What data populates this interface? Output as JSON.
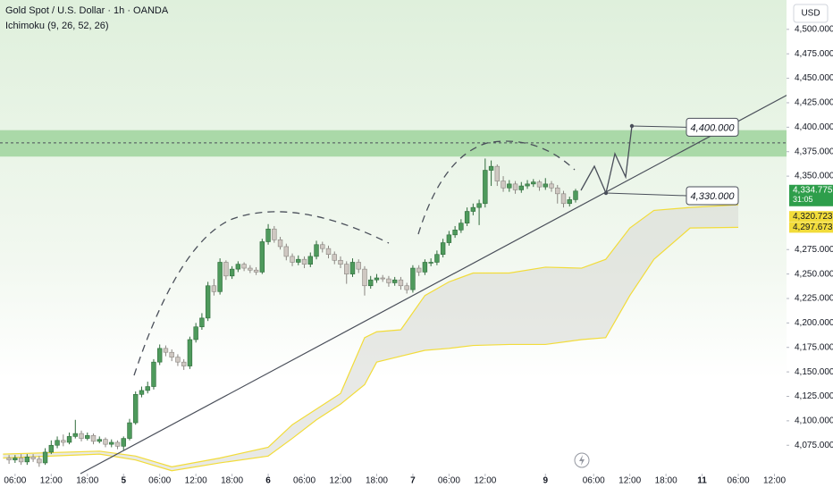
{
  "chart_data": {
    "type": "candlestick",
    "title": "Gold Spot / U.S. Dollar · 1h · OANDA",
    "indicator": "Ichimoku (9, 26, 52, 26)",
    "currency": "USD",
    "xlim": [
      3.5,
      134
    ],
    "ylim": [
      4046,
      4530
    ],
    "xticks": [
      {
        "value": 6,
        "label": "06:00"
      },
      {
        "value": 12,
        "label": "12:00"
      },
      {
        "value": 18,
        "label": "18:00"
      },
      {
        "value": 24,
        "label": "5"
      },
      {
        "value": 30,
        "label": "06:00"
      },
      {
        "value": 36,
        "label": "12:00"
      },
      {
        "value": 42,
        "label": "18:00"
      },
      {
        "value": 48,
        "label": "6"
      },
      {
        "value": 54,
        "label": "06:00"
      },
      {
        "value": 60,
        "label": "12:00"
      },
      {
        "value": 66,
        "label": "18:00"
      },
      {
        "value": 72,
        "label": "7"
      },
      {
        "value": 78,
        "label": "06:00"
      },
      {
        "value": 84,
        "label": "12:00"
      },
      {
        "value": 94,
        "label": "9"
      },
      {
        "value": 102,
        "label": "06:00"
      },
      {
        "value": 108,
        "label": "12:00"
      },
      {
        "value": 114,
        "label": "18:00"
      },
      {
        "value": 120,
        "label": "11"
      },
      {
        "value": 126,
        "label": "06:00"
      },
      {
        "value": 132,
        "label": "12:00"
      }
    ],
    "yticks": [
      {
        "value": 4075,
        "label": "4,075.000"
      },
      {
        "value": 4100,
        "label": "4,100.000"
      },
      {
        "value": 4125,
        "label": "4,125.000"
      },
      {
        "value": 4150,
        "label": "4,150.000"
      },
      {
        "value": 4175,
        "label": "4,175.000"
      },
      {
        "value": 4200,
        "label": "4,200.000"
      },
      {
        "value": 4225,
        "label": "4,225.000"
      },
      {
        "value": 4250,
        "label": "4,250.000"
      },
      {
        "value": 4275,
        "label": "4,275.000"
      },
      {
        "value": 4350,
        "label": "4,350.000"
      },
      {
        "value": 4375,
        "label": "4,375.000"
      },
      {
        "value": 4400,
        "label": "4,400.000"
      },
      {
        "value": 4425,
        "label": "4,425.000"
      },
      {
        "value": 4450,
        "label": "4,450.000"
      },
      {
        "value": 4475,
        "label": "4,475.000"
      },
      {
        "value": 4500,
        "label": "4,500.000"
      }
    ],
    "x": [
      5,
      6,
      7,
      8,
      9,
      10,
      11,
      12,
      13,
      14,
      15,
      16,
      17,
      18,
      19,
      20,
      21,
      22,
      23,
      24,
      25,
      26,
      27,
      28,
      29,
      30,
      31,
      32,
      33,
      34,
      35,
      36,
      37,
      38,
      39,
      40,
      41,
      42,
      43,
      44,
      45,
      46,
      47,
      48,
      49,
      50,
      51,
      52,
      53,
      54,
      55,
      56,
      57,
      58,
      59,
      60,
      61,
      62,
      63,
      64,
      65,
      66,
      67,
      68,
      69,
      70,
      71,
      72,
      73,
      74,
      75,
      76,
      77,
      78,
      79,
      80,
      81,
      82,
      83,
      84,
      85,
      86,
      87,
      88,
      89,
      90,
      91,
      92,
      93,
      94,
      95,
      96,
      97,
      98,
      99
    ],
    "open": [
      4062,
      4060,
      4062,
      4058,
      4063,
      4061,
      4057,
      4068,
      4075,
      4080,
      4078,
      4084,
      4087,
      4082,
      4085,
      4079,
      4081,
      4076,
      4078,
      4074,
      4082,
      4098,
      4127,
      4131,
      4135,
      4160,
      4174,
      4170,
      4165,
      4160,
      4156,
      4183,
      4196,
      4205,
      4238,
      4232,
      4262,
      4248,
      4255,
      4260,
      4256,
      4254,
      4252,
      4283,
      4296,
      4285,
      4278,
      4268,
      4262,
      4265,
      4260,
      4268,
      4280,
      4276,
      4270,
      4264,
      4260,
      4250,
      4262,
      4255,
      4238,
      4244,
      4246,
      4245,
      4241,
      4244,
      4238,
      4234,
      4256,
      4252,
      4262,
      4262,
      4270,
      4282,
      4290,
      4295,
      4302,
      4314,
      4318,
      4322,
      4356,
      4360,
      4345,
      4338,
      4342,
      4336,
      4340,
      4342,
      4344,
      4339,
      4342,
      4338,
      4332,
      4322,
      4326
    ],
    "high": [
      4065,
      4065,
      4066,
      4066,
      4066,
      4064,
      4072,
      4080,
      4084,
      4086,
      4088,
      4101,
      4090,
      4088,
      4087,
      4084,
      4083,
      4081,
      4080,
      4084,
      4102,
      4130,
      4135,
      4140,
      4163,
      4178,
      4177,
      4173,
      4168,
      4163,
      4186,
      4200,
      4210,
      4242,
      4245,
      4266,
      4264,
      4258,
      4263,
      4262,
      4259,
      4257,
      4286,
      4301,
      4299,
      4288,
      4281,
      4271,
      4269,
      4268,
      4272,
      4284,
      4283,
      4279,
      4273,
      4268,
      4263,
      4266,
      4265,
      4258,
      4248,
      4250,
      4249,
      4248,
      4247,
      4247,
      4241,
      4259,
      4259,
      4265,
      4266,
      4274,
      4286,
      4294,
      4299,
      4306,
      4318,
      4322,
      4326,
      4368,
      4366,
      4362,
      4350,
      4346,
      4345,
      4344,
      4346,
      4347,
      4346,
      4348,
      4345,
      4341,
      4335,
      4329,
      4337
    ],
    "low": [
      4056,
      4057,
      4055,
      4055,
      4058,
      4053,
      4055,
      4066,
      4072,
      4074,
      4076,
      4082,
      4079,
      4080,
      4076,
      4077,
      4073,
      4073,
      4071,
      4070,
      4080,
      4096,
      4124,
      4128,
      4132,
      4157,
      4166,
      4161,
      4156,
      4152,
      4153,
      4180,
      4193,
      4202,
      4228,
      4229,
      4244,
      4245,
      4252,
      4253,
      4251,
      4249,
      4250,
      4280,
      4282,
      4275,
      4264,
      4258,
      4259,
      4256,
      4257,
      4265,
      4272,
      4266,
      4260,
      4256,
      4240,
      4247,
      4251,
      4228,
      4235,
      4241,
      4242,
      4237,
      4238,
      4234,
      4230,
      4231,
      4248,
      4249,
      4258,
      4259,
      4267,
      4279,
      4287,
      4292,
      4299,
      4310,
      4300,
      4318,
      4340,
      4340,
      4334,
      4334,
      4332,
      4333,
      4337,
      4339,
      4335,
      4336,
      4334,
      4322,
      4318,
      4319,
      4323
    ],
    "close": [
      4060,
      4062,
      4058,
      4063,
      4061,
      4057,
      4068,
      4075,
      4080,
      4078,
      4084,
      4087,
      4082,
      4085,
      4079,
      4081,
      4076,
      4078,
      4074,
      4082,
      4098,
      4127,
      4131,
      4135,
      4160,
      4174,
      4170,
      4165,
      4160,
      4156,
      4183,
      4196,
      4205,
      4238,
      4232,
      4262,
      4248,
      4255,
      4260,
      4256,
      4254,
      4252,
      4283,
      4296,
      4285,
      4278,
      4268,
      4262,
      4265,
      4260,
      4268,
      4280,
      4276,
      4270,
      4264,
      4260,
      4250,
      4262,
      4255,
      4238,
      4244,
      4246,
      4245,
      4241,
      4244,
      4238,
      4234,
      4256,
      4252,
      4262,
      4262,
      4270,
      4282,
      4290,
      4295,
      4302,
      4314,
      4318,
      4322,
      4356,
      4360,
      4345,
      4338,
      4342,
      4336,
      4340,
      4342,
      4344,
      4339,
      4342,
      4338,
      4332,
      4322,
      4326,
      4334.775
    ],
    "up_color": "#4e9a5c",
    "down_color": "#cfc8c2",
    "cloud": {
      "x": [
        4,
        20,
        26,
        32,
        40,
        48,
        52,
        56,
        60,
        64,
        66,
        70,
        74,
        78,
        82,
        88,
        94,
        100,
        104,
        108,
        112,
        118,
        126
      ],
      "span_a": [
        4066,
        4069,
        4064,
        4053,
        4062,
        4073,
        4096,
        4112,
        4128,
        4185,
        4191,
        4193,
        4228,
        4242,
        4251,
        4251,
        4257,
        4256,
        4265,
        4297,
        4315,
        4318,
        4320.723
      ],
      "span_b": [
        4062,
        4066,
        4060,
        4049,
        4057,
        4064,
        4082,
        4101,
        4117,
        4137,
        4160,
        4166,
        4172,
        4174,
        4177,
        4178,
        4178,
        4183,
        4185,
        4228,
        4265,
        4297,
        4297.673
      ],
      "color": "#f2dc3a"
    },
    "price_labels": [
      {
        "value": 4334.775,
        "label": "4,334.775",
        "color": "#2e9e4b"
      },
      {
        "value": 4320.723,
        "label": "4,320.723",
        "color": "#f2dc3a"
      },
      {
        "value": 4297.673,
        "label": "4,297.673",
        "color": "#f2dc3a"
      }
    ],
    "countdown": "31:05",
    "annotations": [
      {
        "value": 4400,
        "label": "4,400.000"
      },
      {
        "value": 4330,
        "label": "4,330.000"
      }
    ],
    "zone": [
      4370,
      4397
    ],
    "zone_line": 4384
  }
}
